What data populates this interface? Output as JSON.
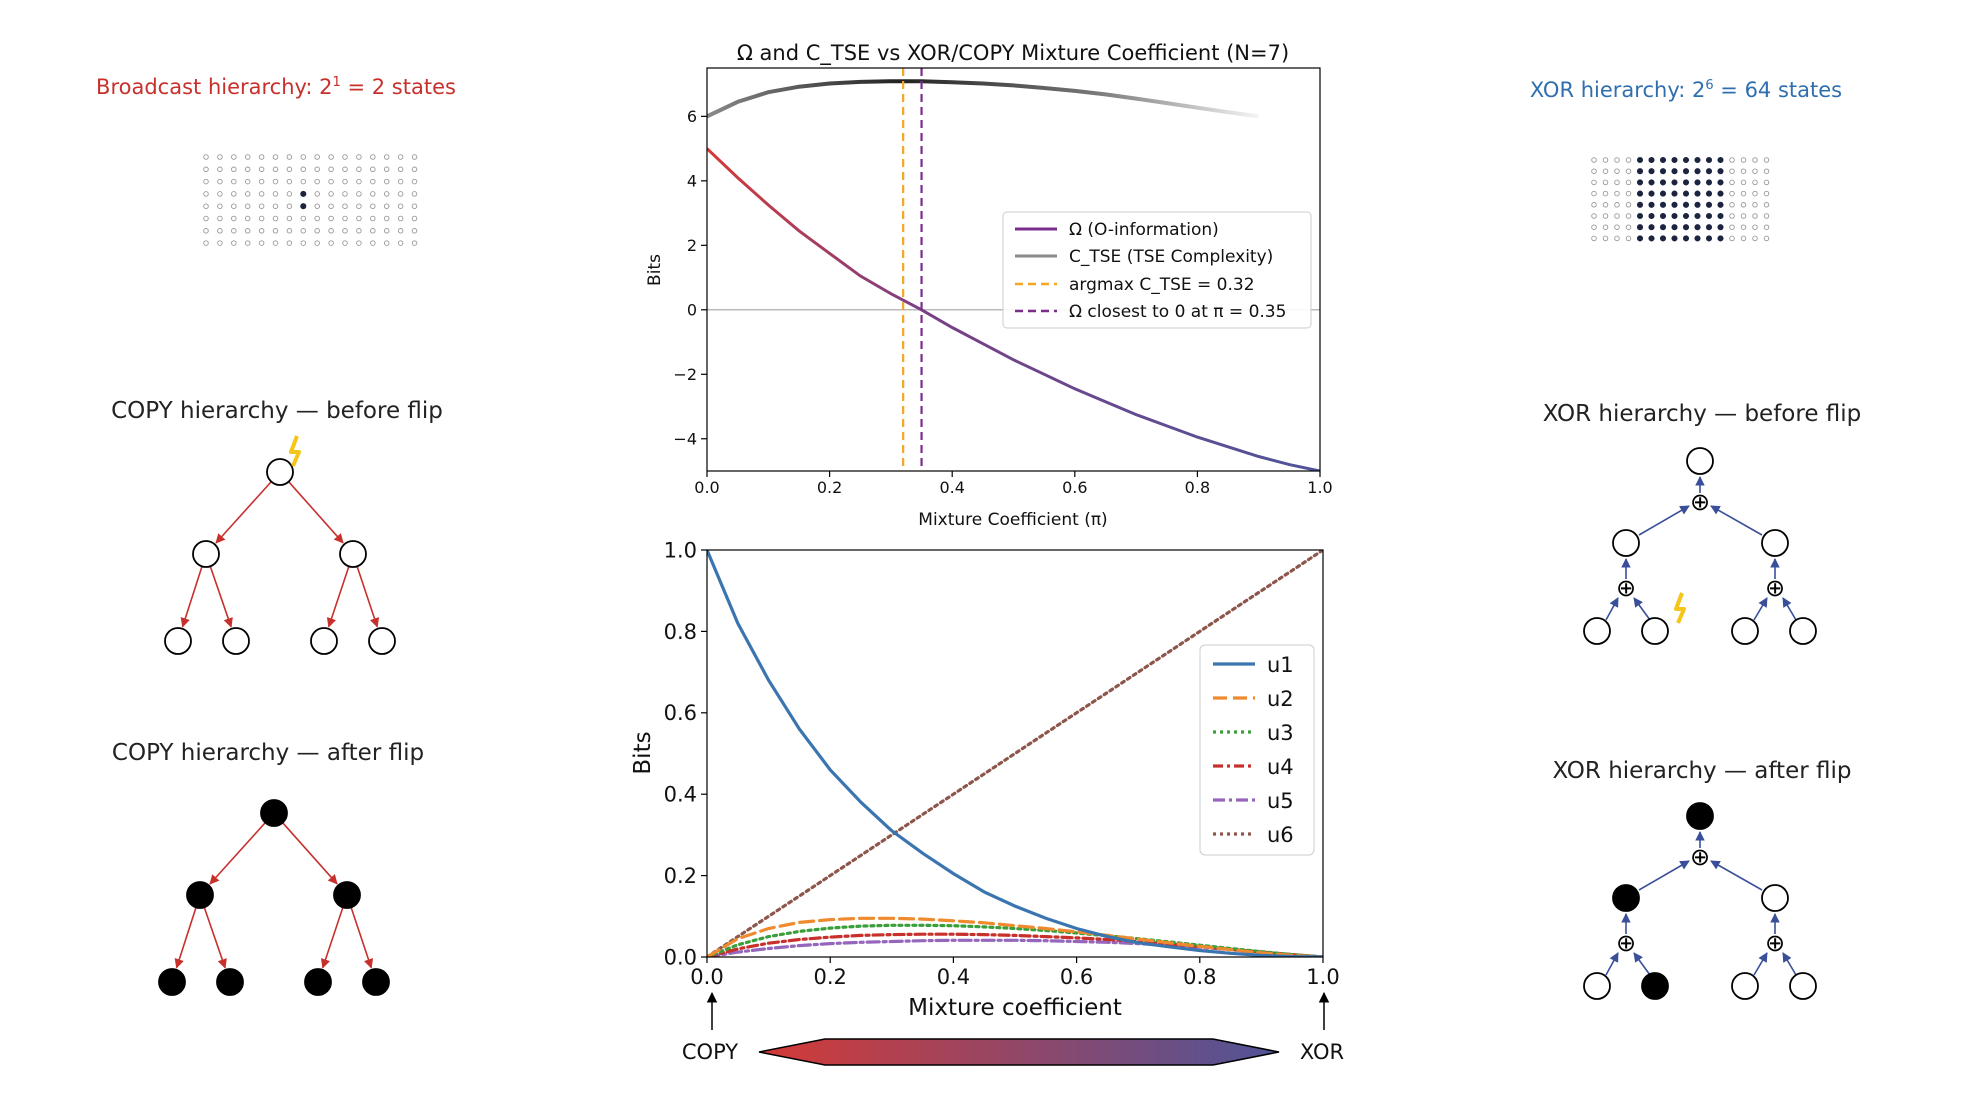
{
  "left": {
    "broadcast_title": {
      "prefix": "Broadcast hierarchy: 2",
      "sup": "1",
      "suffix": " = 2 states"
    },
    "copy_before_title": "COPY hierarchy — before flip",
    "copy_after_title": "COPY hierarchy — after flip"
  },
  "right": {
    "xor_title": {
      "prefix": "XOR hierarchy: 2",
      "sup": "6",
      "suffix": " = 64 states"
    },
    "xor_before_title": "XOR hierarchy — before flip",
    "xor_after_title": "XOR hierarchy — after flip",
    "xor_symbol": "⊕"
  },
  "colors": {
    "copy_red": "#c8302c",
    "xor_blue": "#2f6fb0",
    "xor_arrow": "#3a4f9a",
    "bolt": "#f5c518",
    "omega": "#7b2d8e",
    "ctse": "#8a8a8a",
    "argmax": "#f5a623",
    "omega_zero": "#7b2d8e",
    "gradient_start": "#d43a36",
    "gradient_end": "#4f5499"
  },
  "chart_data": [
    {
      "type": "line",
      "title": "Ω and C_TSE vs XOR/COPY Mixture Coefficient (N=7)",
      "xlabel": "Mixture Coefficient (π)",
      "ylabel": "Bits",
      "xlim": [
        0.0,
        1.0
      ],
      "ylim": [
        -5.0,
        7.5
      ],
      "xticks": [
        "0.0",
        "0.2",
        "0.4",
        "0.6",
        "0.8",
        "1.0"
      ],
      "yticks": [
        "−4",
        "−2",
        "0",
        "2",
        "4",
        "6"
      ],
      "xtick_values": [
        0,
        0.2,
        0.4,
        0.6,
        0.8,
        1.0
      ],
      "ytick_values": [
        -4,
        -2,
        0,
        2,
        4,
        6
      ],
      "x": [
        0.0,
        0.05,
        0.1,
        0.15,
        0.2,
        0.25,
        0.3,
        0.35,
        0.4,
        0.45,
        0.5,
        0.55,
        0.6,
        0.65,
        0.7,
        0.75,
        0.8,
        0.85,
        0.9,
        0.95,
        1.0
      ],
      "series": [
        {
          "name": "Ω (O-information)",
          "values": [
            5.0,
            4.1,
            3.25,
            2.45,
            1.75,
            1.05,
            0.5,
            0.0,
            -0.55,
            -1.05,
            -1.55,
            -2.0,
            -2.45,
            -2.85,
            -3.25,
            -3.6,
            -3.95,
            -4.25,
            -4.55,
            -4.8,
            -5.0
          ]
        },
        {
          "name": "C_TSE (TSE Complexity)",
          "values": [
            6.0,
            6.45,
            6.75,
            6.92,
            7.02,
            7.07,
            7.09,
            7.09,
            7.06,
            7.02,
            6.96,
            6.88,
            6.79,
            6.68,
            6.55,
            6.41,
            6.27,
            6.13,
            6.0,
            null,
            null
          ]
        }
      ],
      "vlines": [
        {
          "label": "argmax C_TSE = 0.32",
          "x": 0.32
        },
        {
          "label": "Ω closest to 0 at π = 0.35",
          "x": 0.35
        }
      ],
      "hline": 0,
      "legend": "center-right"
    },
    {
      "type": "line",
      "title": "",
      "xlabel": "Mixture coefficient",
      "ylabel": "Bits",
      "xlim": [
        0.0,
        1.0
      ],
      "ylim": [
        0.0,
        1.0
      ],
      "xticks": [
        "0.0",
        "0.2",
        "0.4",
        "0.6",
        "0.8",
        "1.0"
      ],
      "yticks": [
        "0.0",
        "0.2",
        "0.4",
        "0.6",
        "0.8",
        "1.0"
      ],
      "xtick_values": [
        0,
        0.2,
        0.4,
        0.6,
        0.8,
        1.0
      ],
      "ytick_values": [
        0,
        0.2,
        0.4,
        0.6,
        0.8,
        1.0
      ],
      "x": [
        0.0,
        0.05,
        0.1,
        0.15,
        0.2,
        0.25,
        0.3,
        0.35,
        0.4,
        0.45,
        0.5,
        0.55,
        0.6,
        0.65,
        0.7,
        0.75,
        0.8,
        0.85,
        0.9,
        0.95,
        1.0
      ],
      "series": [
        {
          "name": "u1",
          "color": "#3a75b0",
          "dash": "",
          "values": [
            1.0,
            0.82,
            0.68,
            0.56,
            0.46,
            0.38,
            0.31,
            0.255,
            0.205,
            0.16,
            0.125,
            0.095,
            0.07,
            0.05,
            0.035,
            0.025,
            0.016,
            0.009,
            0.004,
            0.001,
            0.0
          ]
        },
        {
          "name": "u2",
          "color": "#ef8a2e",
          "dash": "14 6",
          "values": [
            0.0,
            0.045,
            0.07,
            0.085,
            0.092,
            0.095,
            0.095,
            0.093,
            0.089,
            0.084,
            0.077,
            0.07,
            0.062,
            0.053,
            0.044,
            0.035,
            0.026,
            0.018,
            0.01,
            0.004,
            0.0
          ]
        },
        {
          "name": "u3",
          "color": "#3a9e3a",
          "dash": "3 4",
          "values": [
            0.0,
            0.03,
            0.05,
            0.063,
            0.071,
            0.076,
            0.078,
            0.078,
            0.077,
            0.074,
            0.07,
            0.065,
            0.059,
            0.052,
            0.045,
            0.037,
            0.029,
            0.021,
            0.013,
            0.006,
            0.0
          ]
        },
        {
          "name": "u4",
          "color": "#c8302c",
          "dash": "10 4 3 4",
          "values": [
            0.0,
            0.02,
            0.034,
            0.043,
            0.049,
            0.053,
            0.055,
            0.056,
            0.056,
            0.055,
            0.053,
            0.05,
            0.047,
            0.043,
            0.038,
            0.032,
            0.026,
            0.019,
            0.012,
            0.006,
            0.0
          ]
        },
        {
          "name": "u5",
          "color": "#9467bd",
          "dash": "12 4 3 4",
          "values": [
            0.0,
            0.012,
            0.021,
            0.028,
            0.033,
            0.036,
            0.038,
            0.04,
            0.041,
            0.041,
            0.041,
            0.04,
            0.038,
            0.036,
            0.033,
            0.029,
            0.024,
            0.018,
            0.012,
            0.006,
            0.0
          ]
        },
        {
          "name": "u6",
          "color": "#8c564b",
          "dash": "3 4",
          "values": [
            0.0,
            0.05,
            0.1,
            0.15,
            0.2,
            0.25,
            0.3,
            0.35,
            0.4,
            0.45,
            0.5,
            0.55,
            0.6,
            0.65,
            0.7,
            0.75,
            0.8,
            0.85,
            0.9,
            0.95,
            1.0
          ]
        }
      ],
      "legend": "center-right",
      "scale_labels": {
        "left": "COPY",
        "right": "XOR"
      }
    }
  ]
}
